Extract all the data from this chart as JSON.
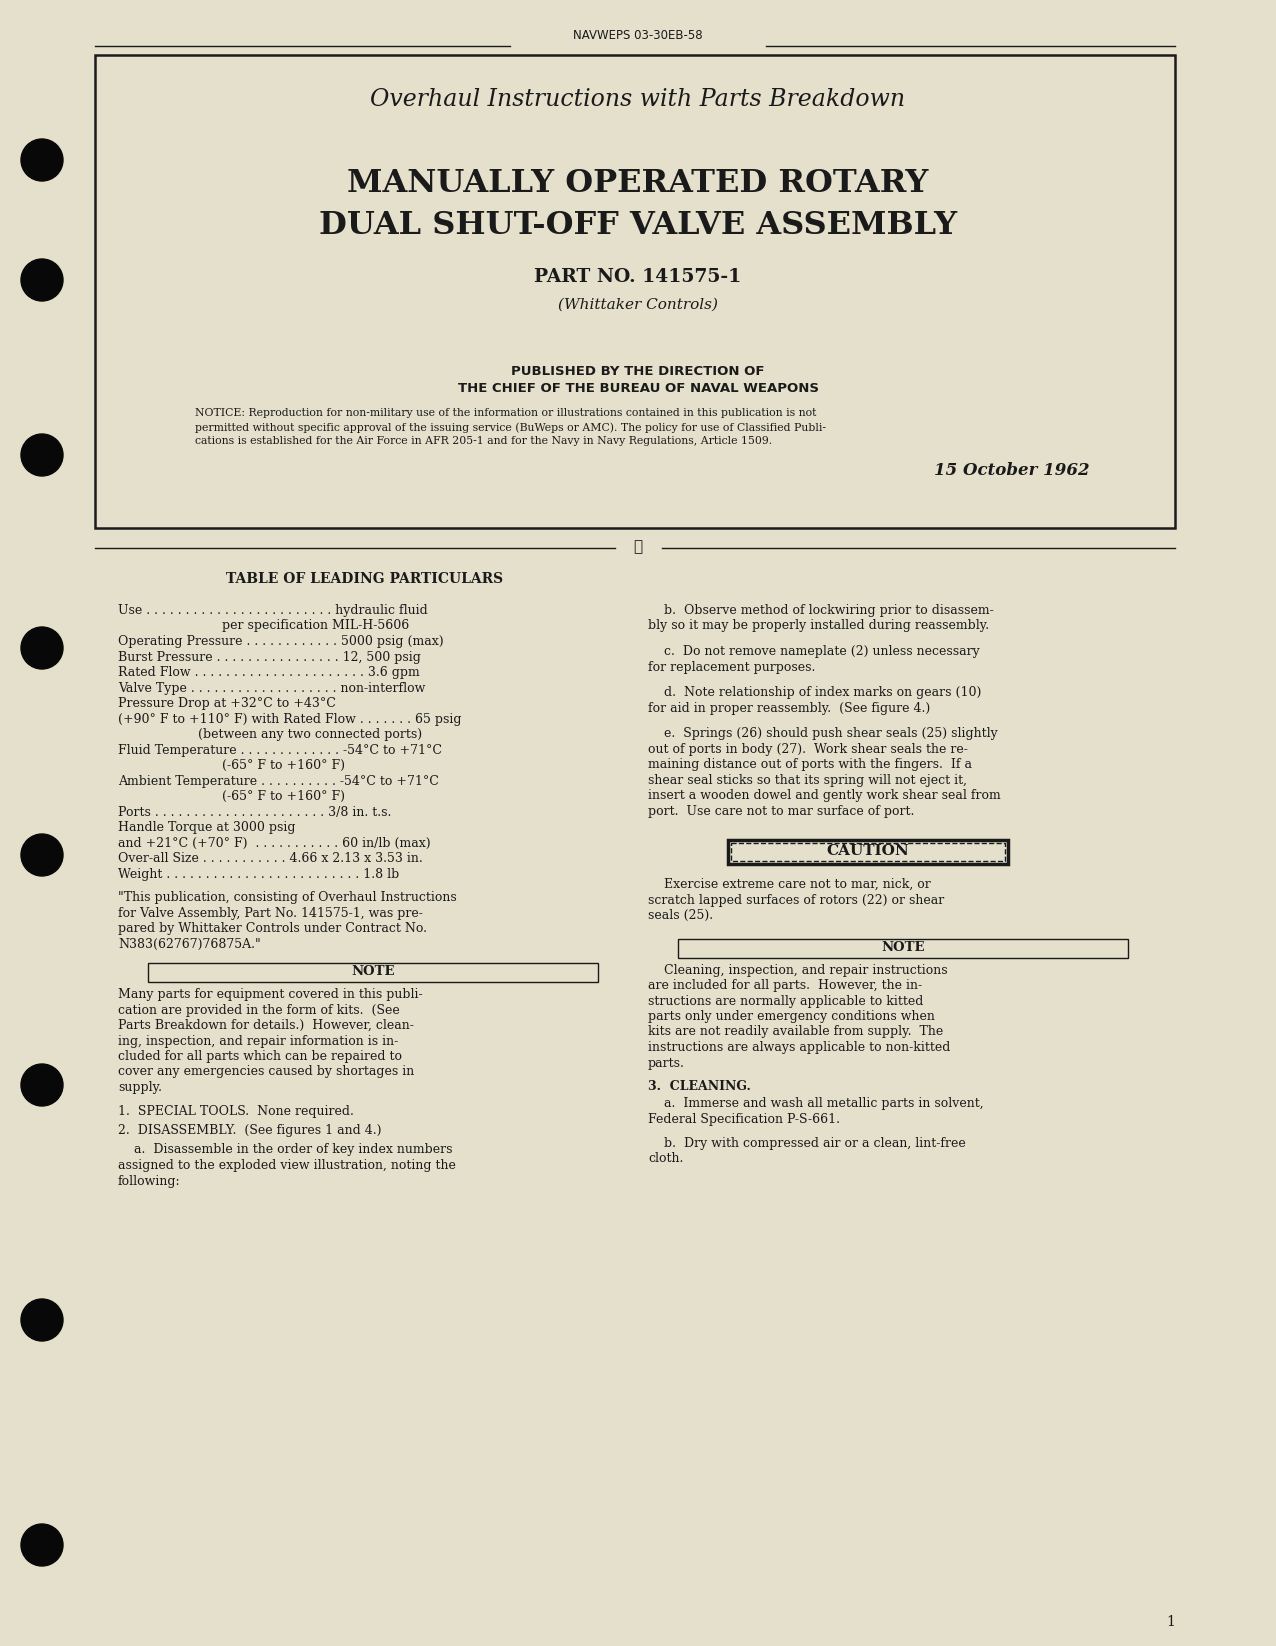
{
  "bg_color": "#e5e0cc",
  "text_color": "#1a1a1a",
  "page_num": "1",
  "header_text": "NAVWEPS 03-30EB-58",
  "title_italic": "Overhaul Instructions with Parts Breakdown",
  "title_main_line1": "MANUALLY OPERATED ROTARY",
  "title_main_line2": "DUAL SHUT-OFF VALVE ASSEMBLY",
  "part_no": "PART NO. 141575-1",
  "manufacturer": "(Whittaker Controls)",
  "published_line1": "PUBLISHED BY THE DIRECTION OF",
  "published_line2": "THE CHIEF OF THE BUREAU OF NAVAL WEAPONS",
  "notice_line1": "NOTICE: Reproduction for non-military use of the information or illustrations contained in this publication is not",
  "notice_line2": "permitted without specific approval of the issuing service (BuWeps or AMC). The policy for use of Classified Publi-",
  "notice_line3": "cations is established for the Air Force in AFR 205-1 and for the Navy in Navy Regulations, Article 1509.",
  "date": "15 October 1962",
  "table_heading": "TABLE OF LEADING PARTICULARS",
  "left_col_lines": [
    "Use . . . . . . . . . . . . . . . . . . . . . . . . hydraulic fluid",
    "                          per specification MIL-H-5606",
    "Operating Pressure . . . . . . . . . . . . 5000 psig (max)",
    "Burst Pressure . . . . . . . . . . . . . . . . 12, 500 psig",
    "Rated Flow . . . . . . . . . . . . . . . . . . . . . . 3.6 gpm",
    "Valve Type . . . . . . . . . . . . . . . . . . . non-interflow",
    "Pressure Drop at +32°C to +43°C",
    "(+90° F to +110° F) with Rated Flow . . . . . . . 65 psig",
    "                    (between any two connected ports)",
    "Fluid Temperature . . . . . . . . . . . . . -54°C to +71°C",
    "                          (-65° F to +160° F)",
    "Ambient Temperature . . . . . . . . . . -54°C to +71°C",
    "                          (-65° F to +160° F)",
    "Ports . . . . . . . . . . . . . . . . . . . . . . 3/8 in. t.s.",
    "Handle Torque at 3000 psig",
    "and +21°C (+70° F)  . . . . . . . . . . . 60 in/lb (max)",
    "Over-all Size . . . . . . . . . . . 4.66 x 2.13 x 3.53 in.",
    "Weight . . . . . . . . . . . . . . . . . . . . . . . . . 1.8 lb"
  ],
  "quote_lines": [
    "\"This publication, consisting of Overhaul Instructions",
    "for Valve Assembly, Part No. 141575-1, was pre-",
    "pared by Whittaker Controls under Contract No.",
    "N383(62767)76875A.\""
  ],
  "note1_lines": [
    "Many parts for equipment covered in this publi-",
    "cation are provided in the form of kits.  (See",
    "Parts Breakdown for details.)  However, clean-",
    "ing, inspection, and repair information is in-",
    "cluded for all parts which can be repaired to",
    "cover any emergencies caused by shortages in",
    "supply."
  ],
  "special_tools": "1.  SPECIAL TOOLS.  None required.",
  "disassembly": "2.  DISASSEMBLY.  (See figures 1 and 4.)",
  "disasm_a_lines": [
    "    a.  Disassemble in the order of key index numbers",
    "assigned to the exploded view illustration, noting the",
    "following:"
  ],
  "right_b_lines": [
    "    b.  Observe method of lockwiring prior to disassem-",
    "bly so it may be properly installed during reassembly."
  ],
  "right_c_lines": [
    "    c.  Do not remove nameplate (2) unless necessary",
    "for replacement purposes."
  ],
  "right_d_lines": [
    "    d.  Note relationship of index marks on gears (10)",
    "for aid in proper reassembly.  (See figure 4.)"
  ],
  "right_e_lines": [
    "    e.  Springs (26) should push shear seals (25) slightly",
    "out of ports in body (27).  Work shear seals the re-",
    "maining distance out of ports with the fingers.  If a",
    "shear seal sticks so that its spring will not eject it,",
    "insert a wooden dowel and gently work shear seal from",
    "port.  Use care not to mar surface of port."
  ],
  "caution_label": "CAUTION",
  "caution_lines": [
    "    Exercise extreme care not to mar, nick, or",
    "scratch lapped surfaces of rotors (22) or shear",
    "seals (25)."
  ],
  "note2_lines": [
    "    Cleaning, inspection, and repair instructions",
    "are included for all parts.  However, the in-",
    "structions are normally applicable to kitted",
    "parts only under emergency conditions when",
    "kits are not readily available from supply.  The",
    "instructions are always applicable to non-kitted",
    "parts."
  ],
  "cleaning_heading": "3.  CLEANING.",
  "cleaning_a_lines": [
    "    a.  Immerse and wash all metallic parts in solvent,",
    "Federal Specification P-S-661."
  ],
  "cleaning_b_lines": [
    "    b.  Dry with compressed air or a clean, lint-free",
    "cloth."
  ]
}
